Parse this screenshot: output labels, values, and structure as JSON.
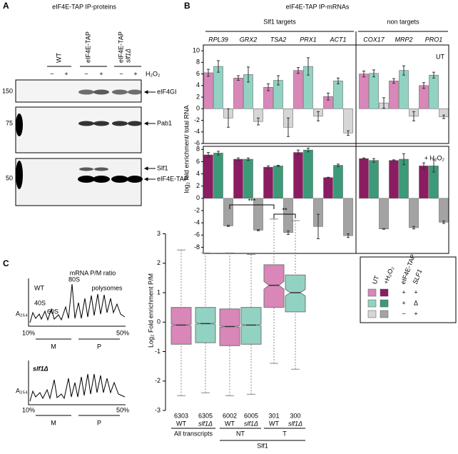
{
  "panel_a": {
    "letter": "A",
    "title": "eIF4E-TAP IP-proteins",
    "lanes": [
      {
        "label": "WT"
      },
      {
        "label": "eIF4E-TAP"
      },
      {
        "label": "eIF4E-TAP",
        "label2": "slf1Δ"
      }
    ],
    "signs": [
      "−",
      "+",
      "−",
      "+",
      "−",
      "+"
    ],
    "treatment": "H₂O₂",
    "markers": [
      "150",
      "75",
      "50"
    ],
    "bands": [
      "eIF4GI",
      "Pab1",
      "Slf1",
      "eIF4E-TAP"
    ]
  },
  "panel_b": {
    "letter": "B",
    "title": "eIF4E-TAP IP-mRNAs",
    "groups": [
      "Slf1 targets",
      "non targets"
    ],
    "ylabel": "log₂ fold enrichment/ total RNA",
    "legend": {
      "headers": [
        "UT",
        "+H₂O₂",
        "eIF4E-TAP",
        "SLF1"
      ],
      "rows": [
        [
          "+",
          "+"
        ],
        [
          "+",
          "Δ"
        ],
        [
          "−",
          "+"
        ]
      ]
    }
  },
  "chart_data": [
    {
      "type": "bar",
      "annotation": "UT",
      "categories": [
        "RPL39",
        "GRX2",
        "TSA2",
        "PRX1",
        "ACT1",
        "COX17",
        "MRP2",
        "PRO1"
      ],
      "ylim": [
        -6,
        11
      ],
      "yticks": [
        10,
        8,
        6,
        4,
        2,
        0,
        -2,
        -4,
        -6
      ],
      "series": [
        {
          "color": "#d986b8",
          "values": [
            6.2,
            5.3,
            3.7,
            6.6,
            2.1,
            6.0,
            4.8,
            4.0
          ],
          "errors": [
            0.6,
            0.4,
            0.6,
            0.5,
            0.6,
            0.5,
            0.4,
            0.5
          ]
        },
        {
          "color": "#92d2c2",
          "values": [
            7.3,
            5.9,
            4.9,
            7.3,
            4.8,
            6.1,
            6.6,
            5.8
          ],
          "errors": [
            1.0,
            1.3,
            0.8,
            1.5,
            0.5,
            0.6,
            0.8,
            0.5
          ]
        },
        {
          "color": "#d6d6d6",
          "values": [
            -1.6,
            -2.2,
            -3.2,
            -1.3,
            -4.2,
            1.0,
            -1.3,
            -1.4
          ],
          "errors": [
            1.6,
            0.6,
            1.6,
            0.8,
            0.4,
            0.9,
            0.8,
            0.3
          ]
        }
      ]
    },
    {
      "type": "bar",
      "annotation": "+ H₂O₂",
      "ylim": [
        -9,
        8.5
      ],
      "yticks": [
        8,
        6,
        4,
        2,
        0,
        -2,
        -4,
        -6,
        -8
      ],
      "series": [
        {
          "color": "#8c1c62",
          "values": [
            7.1,
            6.4,
            5.1,
            7.5,
            3.4,
            6.5,
            6.2,
            5.3
          ],
          "errors": [
            0.4,
            0.2,
            0.2,
            0.4,
            0.05,
            0.1,
            0.1,
            0.5
          ]
        },
        {
          "color": "#3c9a78",
          "values": [
            7.4,
            6.4,
            5.3,
            7.9,
            5.4,
            6.2,
            6.4,
            5.3
          ],
          "errors": [
            0.3,
            0.2,
            0.1,
            0.3,
            0.2,
            0.3,
            0.9,
            1.0
          ]
        },
        {
          "color": "#a3a3a3",
          "values": [
            -4.5,
            -5.2,
            -5.6,
            -4.6,
            -6.1,
            -5.0,
            -4.8,
            -3.9
          ],
          "errors": [
            0.1,
            0.1,
            0.3,
            2.0,
            0.3,
            0.05,
            0.2,
            0.2
          ]
        }
      ]
    },
    {
      "type": "box",
      "ylabel": "Log₂ Fold enrichment P/M",
      "categories": [
        "WT",
        "slf1Δ",
        "WT",
        "slf1Δ",
        "WT",
        "slf1Δ"
      ],
      "counts": [
        6303,
        6305,
        6002,
        6005,
        301,
        300
      ],
      "colors": [
        "#d986b8",
        "#92d2c2",
        "#d986b8",
        "#92d2c2",
        "#d986b8",
        "#92d2c2"
      ],
      "median": [
        -0.1,
        -0.05,
        -0.15,
        -0.1,
        1.25,
        1.0
      ],
      "q1": [
        -0.75,
        -0.7,
        -0.8,
        -0.75,
        0.5,
        0.35
      ],
      "q3": [
        0.5,
        0.5,
        0.45,
        0.5,
        1.95,
        1.6
      ],
      "whisker_low": [
        -2.5,
        -2.4,
        -2.5,
        -2.45,
        -1.4,
        -1.6
      ],
      "whisker_high": [
        2.45,
        2.35,
        2.35,
        2.3,
        3.5,
        3.45
      ],
      "groups": [
        "All transcripts",
        "NT",
        "T"
      ],
      "supergroup": "Slf1",
      "significance": [
        "***",
        "**"
      ],
      "ylim": [
        -3,
        4.2
      ],
      "yticks": [
        3,
        2,
        1,
        0,
        -1,
        -2,
        -3
      ]
    }
  ],
  "panel_c": {
    "letter": "C",
    "title": "mRNA P/M ratio",
    "profiles": [
      {
        "strain": "WT",
        "peaks": [
          "40S",
          "60S",
          "80S",
          "polysomes"
        ]
      },
      {
        "strain": "slf1Δ"
      }
    ],
    "ylabel": "A₂₅₄",
    "gradient": [
      "10%",
      "50%"
    ],
    "fractions": [
      "M",
      "P"
    ]
  }
}
